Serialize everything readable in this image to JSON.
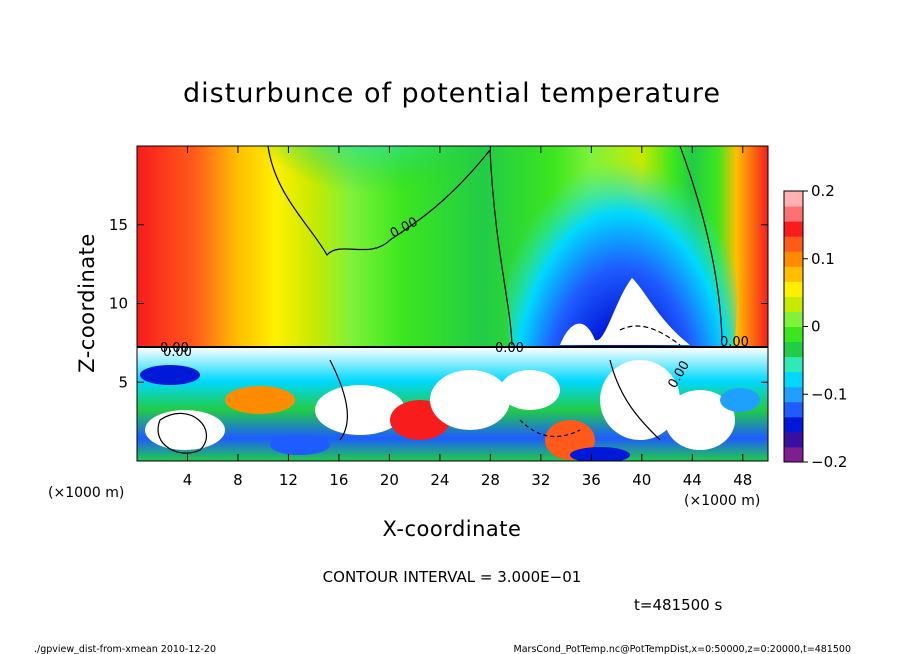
{
  "chart_data": {
    "type": "heatmap",
    "title": "disturbunce of potential temperature",
    "xlabel": "X-coordinate",
    "ylabel": "Z-coordinate",
    "x_unit": "(×1000 m)",
    "y_unit": "(×1000 m)",
    "xlim": [
      0,
      50
    ],
    "ylim": [
      0,
      20
    ],
    "x_ticks": [
      "4",
      "8",
      "12",
      "16",
      "20",
      "24",
      "28",
      "32",
      "36",
      "40",
      "44",
      "48"
    ],
    "y_ticks": [
      "5",
      "10",
      "15"
    ],
    "colorbar": {
      "range": [
        -0.2,
        0.2
      ],
      "ticks": [
        "0.2",
        "0.1",
        "0",
        "−0.1",
        "−0.2"
      ],
      "colors": [
        "#7f1f8f",
        "#3a0fa0",
        "#0018d8",
        "#1e5cff",
        "#1fa0ff",
        "#00d8ff",
        "#2fe9b7",
        "#21cc47",
        "#3ce61f",
        "#7ff23a",
        "#c6ea00",
        "#fff000",
        "#ffbf00",
        "#ff8c00",
        "#ff5a1a",
        "#f81c1c",
        "#ff7070",
        "#ffb0b0"
      ]
    },
    "contour_interval": "CONTOUR INTERVAL = 3.000E−01",
    "contour_labels": [
      "0.00",
      "0.00",
      "0.00",
      "0.00",
      "0.00",
      "0.00"
    ],
    "time_label": "t=481500 s",
    "footer_left": "./gpview_dist-from-xmean  2010-12-20",
    "footer_right": "MarsCond_PotTemp.nc@PotTempDist,x=0:50000,z=0:20000,t=481500"
  }
}
